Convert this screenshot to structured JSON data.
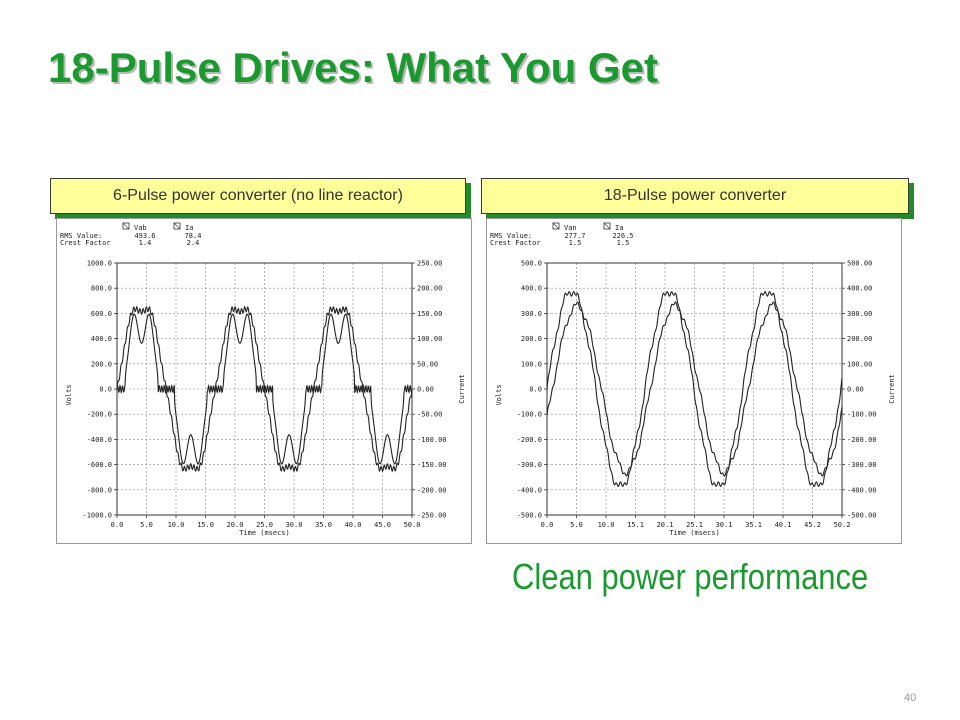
{
  "slide": {
    "title": "18-Pulse Drives: What You Get",
    "caption": "Clean power performance",
    "page_number": "40",
    "colors": {
      "title": "#1a9a2e",
      "banner_fill": "#ffff99",
      "banner_shadow": "#238a2a",
      "trace": "#222222"
    }
  },
  "chart_data": [
    {
      "type": "line",
      "banner": "6-Pulse power converter (no line reactor)",
      "legend": {
        "v_name": "Vab",
        "i_name": "Ia",
        "rms_label": "RMS Value:",
        "cf_label": "Crest Factor",
        "v_rms": "493.6",
        "i_rms": "78.4",
        "v_cf": "1.4",
        "i_cf": "2.4"
      },
      "xlabel": "Time (msecs)",
      "ylabel_left": "Volts",
      "ylabel_right": "Current",
      "xlim": [
        0,
        50
      ],
      "ylim_left": [
        -1000,
        1000
      ],
      "ylim_right": [
        -250,
        250
      ],
      "xticks": [
        "0.0",
        "5.0",
        "10.0",
        "15.0",
        "20.0",
        "25.0",
        "30.0",
        "35.0",
        "40.0",
        "45.0",
        "50.0"
      ],
      "yticks_left": [
        "1000.0",
        "800.0",
        "600.0",
        "400.0",
        "200.0",
        "0.0",
        "-200.0",
        "-400.0",
        "-600.0",
        "-800.0",
        "-1000.0"
      ],
      "yticks_right": [
        "250.00",
        "200.00",
        "150.00",
        "100.00",
        "50.00",
        "0.00",
        "-50.00",
        "-100.00",
        "-150.00",
        "-200.00",
        "-250.00"
      ],
      "series": [
        {
          "name": "Vab",
          "axis": "left",
          "shape": "distorted-sine",
          "amplitude": 690,
          "frequency_hz": 60,
          "phase_deg": 0
        },
        {
          "name": "Ia",
          "axis": "right",
          "shape": "6-pulse double-hump",
          "peak": 165,
          "frequency_hz": 60
        }
      ]
    },
    {
      "type": "line",
      "banner": "18-Pulse power converter",
      "legend": {
        "v_name": "Van",
        "i_name": "Ia",
        "rms_label": "RMS Value:",
        "cf_label": "Crest Factor",
        "v_rms": "277.7",
        "i_rms": "226.5",
        "v_cf": "1.5",
        "i_cf": "1.5"
      },
      "xlabel": "Time (msecs)",
      "ylabel_left": "Volts",
      "ylabel_right": "Current",
      "xlim": [
        0,
        50.2
      ],
      "ylim_left": [
        -500,
        500
      ],
      "ylim_right": [
        -500,
        500
      ],
      "xticks": [
        "0.0",
        "5.0",
        "10.0",
        "15.1",
        "20.1",
        "25.1",
        "30.1",
        "35.1",
        "40.1",
        "45.2",
        "50.2"
      ],
      "yticks_left": [
        "500.0",
        "400.0",
        "300.0",
        "200.0",
        "100.0",
        "0.0",
        "-100.0",
        "-200.0",
        "-300.0",
        "-400.0",
        "-500.0"
      ],
      "yticks_right": [
        "500.00",
        "400.00",
        "300.00",
        "200.00",
        "100.00",
        "0.00",
        "-100.00",
        "-200.00",
        "-300.00",
        "-400.00",
        "-500.00"
      ],
      "series": [
        {
          "name": "Van",
          "axis": "left",
          "shape": "sine",
          "amplitude": 390,
          "frequency_hz": 60,
          "phase_deg": 0
        },
        {
          "name": "Ia",
          "axis": "right",
          "shape": "sine",
          "amplitude": 330,
          "frequency_hz": 60,
          "phase_deg": -20
        }
      ]
    }
  ]
}
